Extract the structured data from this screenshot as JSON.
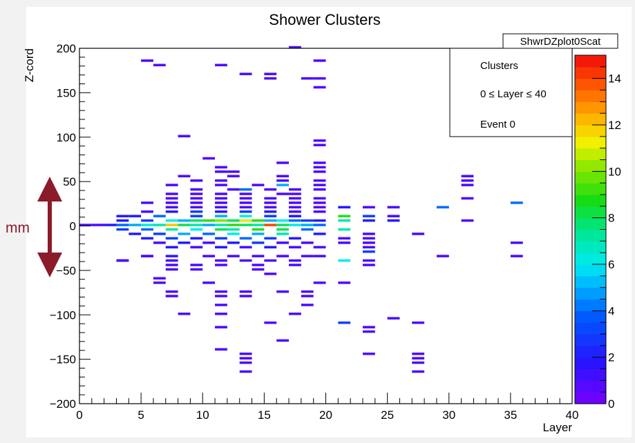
{
  "chart_data": {
    "type": "heatmap",
    "title": "Shower Clusters",
    "xlabel": "Layer",
    "ylabel": "Z-cord",
    "xlim": [
      0,
      40
    ],
    "ylim": [
      -200,
      200
    ],
    "x_ticks": [
      0,
      5,
      10,
      15,
      20,
      25,
      30,
      35,
      40
    ],
    "y_ticks": [
      -200,
      -150,
      -100,
      -50,
      0,
      50,
      100,
      150,
      200
    ],
    "color_range": [
      0,
      15
    ],
    "color_ticks": [
      0,
      2,
      4,
      6,
      8,
      10,
      12,
      14
    ],
    "histogram_name": "ShwrDZplot0Scat",
    "stats_box": [
      "Clusters",
      "0 ≤ Layer ≤ 40",
      "Event 0"
    ],
    "bin_height": 5,
    "cells": [
      [
        0,
        0,
        1
      ],
      [
        1,
        0,
        1
      ],
      [
        2,
        0,
        2
      ],
      [
        3,
        0,
        4
      ],
      [
        4,
        0,
        5
      ],
      [
        5,
        0,
        6
      ],
      [
        6,
        0,
        7
      ],
      [
        7,
        0,
        12
      ],
      [
        8,
        0,
        8
      ],
      [
        9,
        0,
        7
      ],
      [
        10,
        0,
        5
      ],
      [
        11,
        0,
        7
      ],
      [
        12,
        0,
        9
      ],
      [
        13,
        0,
        8
      ],
      [
        14,
        0,
        7
      ],
      [
        15,
        0,
        14
      ],
      [
        16,
        0,
        8
      ],
      [
        17,
        0,
        6
      ],
      [
        18,
        0,
        5
      ],
      [
        19,
        0,
        4
      ],
      [
        3,
        5,
        2
      ],
      [
        5,
        5,
        3
      ],
      [
        7,
        5,
        6
      ],
      [
        8,
        5,
        5
      ],
      [
        9,
        5,
        8
      ],
      [
        10,
        5,
        9
      ],
      [
        11,
        5,
        10
      ],
      [
        12,
        5,
        8
      ],
      [
        13,
        5,
        11
      ],
      [
        14,
        5,
        9
      ],
      [
        15,
        5,
        5
      ],
      [
        16,
        5,
        6
      ],
      [
        17,
        5,
        4
      ],
      [
        18,
        5,
        3
      ],
      [
        19,
        5,
        2
      ],
      [
        21,
        5,
        7
      ],
      [
        23,
        5,
        2
      ],
      [
        25,
        5,
        2
      ],
      [
        31,
        5,
        1
      ],
      [
        4,
        10,
        2
      ],
      [
        6,
        10,
        4
      ],
      [
        9,
        10,
        3
      ],
      [
        11,
        10,
        5
      ],
      [
        13,
        10,
        6
      ],
      [
        15,
        10,
        3
      ],
      [
        17,
        10,
        2
      ],
      [
        21,
        10,
        9
      ],
      [
        23,
        10,
        3
      ],
      [
        25,
        10,
        1
      ],
      [
        3,
        -5,
        3
      ],
      [
        5,
        -5,
        4
      ],
      [
        7,
        -5,
        7
      ],
      [
        9,
        -5,
        6
      ],
      [
        11,
        -5,
        8
      ],
      [
        12,
        -5,
        7
      ],
      [
        14,
        -5,
        9
      ],
      [
        16,
        -5,
        8
      ],
      [
        18,
        -5,
        4
      ],
      [
        21,
        -5,
        7
      ],
      [
        4,
        -10,
        2
      ],
      [
        6,
        -10,
        3
      ],
      [
        8,
        -10,
        5
      ],
      [
        10,
        -10,
        4
      ],
      [
        12,
        -10,
        6
      ],
      [
        14,
        -10,
        5
      ],
      [
        16,
        -10,
        7
      ],
      [
        19,
        -10,
        2
      ],
      [
        23,
        -10,
        1
      ],
      [
        27,
        -10,
        1
      ],
      [
        5,
        -15,
        2
      ],
      [
        7,
        -15,
        3
      ],
      [
        9,
        -15,
        2
      ],
      [
        11,
        -15,
        3
      ],
      [
        13,
        -15,
        4
      ],
      [
        15,
        -15,
        3
      ],
      [
        17,
        -15,
        2
      ],
      [
        21,
        -15,
        1
      ],
      [
        23,
        -15,
        1
      ],
      [
        6,
        -20,
        1
      ],
      [
        8,
        -20,
        2
      ],
      [
        10,
        -20,
        1
      ],
      [
        12,
        -20,
        2
      ],
      [
        14,
        -20,
        3
      ],
      [
        16,
        -20,
        1
      ],
      [
        18,
        -20,
        1
      ],
      [
        21,
        -20,
        1
      ],
      [
        23,
        -20,
        1
      ],
      [
        35,
        -20,
        1
      ],
      [
        7,
        -25,
        2
      ],
      [
        9,
        -25,
        1
      ],
      [
        11,
        -25,
        2
      ],
      [
        13,
        -25,
        1
      ],
      [
        15,
        -25,
        2
      ],
      [
        17,
        -25,
        1
      ],
      [
        19,
        -25,
        1
      ],
      [
        23,
        -25,
        1
      ],
      [
        5,
        -35,
        1
      ],
      [
        7,
        -35,
        2
      ],
      [
        10,
        -35,
        1
      ],
      [
        12,
        -35,
        1
      ],
      [
        14,
        -35,
        1
      ],
      [
        16,
        -35,
        1
      ],
      [
        18,
        -35,
        1
      ],
      [
        19,
        -35,
        1
      ],
      [
        23,
        -30,
        3
      ],
      [
        29,
        -35,
        1
      ],
      [
        35,
        -35,
        1
      ],
      [
        3,
        -40,
        1
      ],
      [
        7,
        -40,
        1
      ],
      [
        11,
        -40,
        1
      ],
      [
        13,
        -40,
        1
      ],
      [
        15,
        -40,
        1
      ],
      [
        17,
        -40,
        1
      ],
      [
        21,
        -40,
        6
      ],
      [
        23,
        -40,
        1
      ],
      [
        7,
        -45,
        1
      ],
      [
        9,
        -45,
        1
      ],
      [
        11,
        -45,
        1
      ],
      [
        14,
        -45,
        1
      ],
      [
        17,
        -45,
        1
      ],
      [
        23,
        -45,
        1
      ],
      [
        7,
        -50,
        1
      ],
      [
        9,
        -50,
        1
      ],
      [
        14,
        -50,
        1
      ],
      [
        15,
        -55,
        1
      ],
      [
        6,
        -60,
        1
      ],
      [
        6,
        -65,
        1
      ],
      [
        10,
        -65,
        1
      ],
      [
        19,
        -65,
        1
      ],
      [
        21,
        -65,
        1
      ],
      [
        7,
        -75,
        1
      ],
      [
        11,
        -75,
        1
      ],
      [
        13,
        -75,
        1
      ],
      [
        16,
        -75,
        1
      ],
      [
        18,
        -75,
        1
      ],
      [
        7,
        -80,
        1
      ],
      [
        11,
        -80,
        1
      ],
      [
        13,
        -80,
        1
      ],
      [
        18,
        -80,
        1
      ],
      [
        11,
        -90,
        1
      ],
      [
        18,
        -90,
        1
      ],
      [
        8,
        -100,
        1
      ],
      [
        11,
        -100,
        1
      ],
      [
        17,
        -100,
        1
      ],
      [
        15,
        -110,
        1
      ],
      [
        21,
        -110,
        3
      ],
      [
        25,
        -105,
        1
      ],
      [
        27,
        -110,
        1
      ],
      [
        11,
        -115,
        1
      ],
      [
        23,
        -115,
        1
      ],
      [
        23,
        -120,
        1
      ],
      [
        16,
        -130,
        1
      ],
      [
        11,
        -140,
        1
      ],
      [
        13,
        -145,
        1
      ],
      [
        23,
        -145,
        1
      ],
      [
        27,
        -145,
        1
      ],
      [
        13,
        -150,
        1
      ],
      [
        27,
        -150,
        1
      ],
      [
        13,
        -155,
        1
      ],
      [
        27,
        -155,
        1
      ],
      [
        13,
        -165,
        1
      ],
      [
        27,
        -165,
        1
      ],
      [
        3,
        -40,
        1
      ],
      [
        5,
        -35,
        1
      ],
      [
        3,
        10,
        2
      ],
      [
        5,
        15,
        1
      ],
      [
        7,
        15,
        2
      ],
      [
        9,
        15,
        3
      ],
      [
        11,
        15,
        2
      ],
      [
        13,
        15,
        3
      ],
      [
        15,
        15,
        2
      ],
      [
        17,
        15,
        1
      ],
      [
        19,
        15,
        1
      ],
      [
        7,
        20,
        1
      ],
      [
        9,
        20,
        1
      ],
      [
        11,
        20,
        1
      ],
      [
        13,
        20,
        1
      ],
      [
        15,
        20,
        1
      ],
      [
        17,
        20,
        1
      ],
      [
        19,
        20,
        1
      ],
      [
        21,
        20,
        2
      ],
      [
        23,
        20,
        1
      ],
      [
        25,
        20,
        1
      ],
      [
        29,
        20,
        4
      ],
      [
        5,
        25,
        1
      ],
      [
        7,
        25,
        1
      ],
      [
        9,
        25,
        1
      ],
      [
        11,
        25,
        1
      ],
      [
        13,
        25,
        1
      ],
      [
        15,
        25,
        1
      ],
      [
        17,
        25,
        1
      ],
      [
        19,
        25,
        1
      ],
      [
        35,
        25,
        4
      ],
      [
        7,
        30,
        1
      ],
      [
        9,
        30,
        1
      ],
      [
        11,
        30,
        1
      ],
      [
        13,
        30,
        1
      ],
      [
        15,
        30,
        1
      ],
      [
        17,
        30,
        1
      ],
      [
        19,
        30,
        1
      ],
      [
        31,
        30,
        1
      ],
      [
        7,
        35,
        1
      ],
      [
        9,
        35,
        1
      ],
      [
        11,
        35,
        1
      ],
      [
        13,
        35,
        1
      ],
      [
        16,
        35,
        1
      ],
      [
        17,
        35,
        1
      ],
      [
        9,
        40,
        1
      ],
      [
        12,
        40,
        1
      ],
      [
        13,
        40,
        4
      ],
      [
        15,
        40,
        1
      ],
      [
        17,
        40,
        1
      ],
      [
        19,
        40,
        1
      ],
      [
        7,
        45,
        1
      ],
      [
        11,
        45,
        1
      ],
      [
        14,
        45,
        1
      ],
      [
        16,
        45,
        5
      ],
      [
        19,
        45,
        1
      ],
      [
        31,
        45,
        1
      ],
      [
        9,
        50,
        1
      ],
      [
        11,
        50,
        1
      ],
      [
        16,
        50,
        1
      ],
      [
        19,
        50,
        1
      ],
      [
        31,
        50,
        1
      ],
      [
        8,
        55,
        1
      ],
      [
        12,
        55,
        1
      ],
      [
        16,
        55,
        1
      ],
      [
        31,
        55,
        1
      ],
      [
        11,
        60,
        1
      ],
      [
        19,
        60,
        1
      ],
      [
        12,
        60,
        1
      ],
      [
        11,
        65,
        1
      ],
      [
        16,
        70,
        1
      ],
      [
        19,
        65,
        1
      ],
      [
        19,
        70,
        1
      ],
      [
        10,
        75,
        1
      ],
      [
        8,
        100,
        1
      ],
      [
        19,
        90,
        1
      ],
      [
        19,
        95,
        1
      ],
      [
        13,
        170,
        1
      ],
      [
        15,
        165,
        1
      ],
      [
        15,
        170,
        1
      ],
      [
        18,
        165,
        1
      ],
      [
        19,
        165,
        1
      ],
      [
        19,
        155,
        1
      ],
      [
        5,
        185,
        1
      ],
      [
        6,
        180,
        1
      ],
      [
        11,
        180,
        1
      ],
      [
        17,
        200,
        1
      ],
      [
        19,
        185,
        1
      ]
    ]
  },
  "annotation": {
    "label": "mm"
  },
  "colors": {
    "plot_bg": "#ffffff",
    "page_bg": "#f2f2f2",
    "annotation": "#8b1a2b"
  }
}
